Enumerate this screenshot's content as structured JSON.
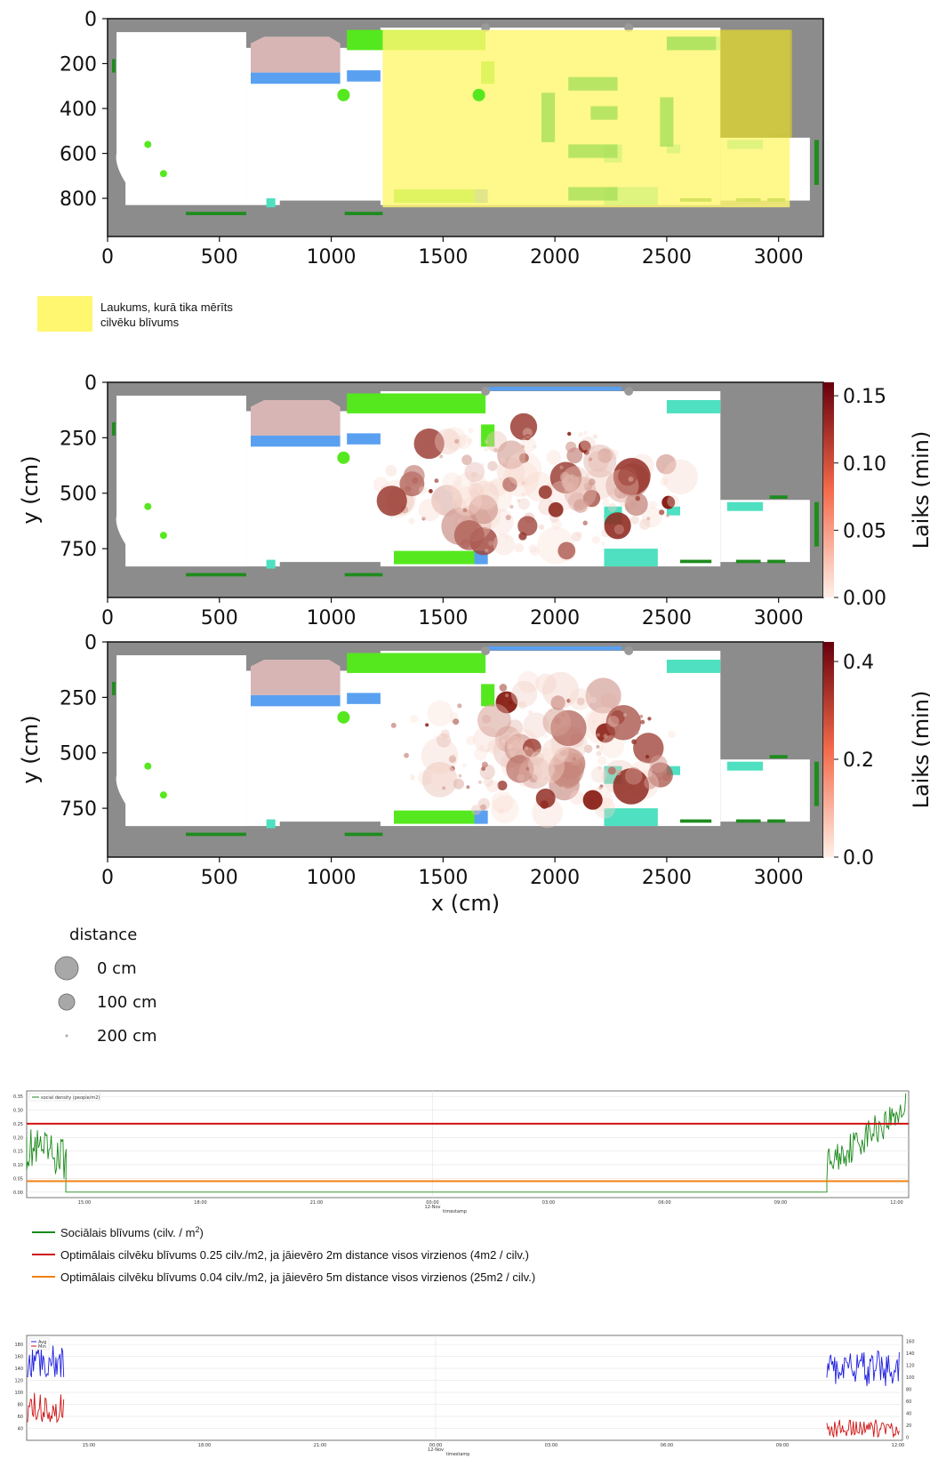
{
  "colors": {
    "wall": "#8c8c8c",
    "floor": "#ffffff",
    "pink": "#d8b5b5",
    "blue": "#5aa0f0",
    "green_light": "#56e81e",
    "dark_green": "#1e8c1e",
    "teal": "#4ee0c0",
    "yellow": "#fff770",
    "olive": "#c8bf3c",
    "green_line": "#1a8a1a",
    "red_line": "#d01010",
    "orange_line": "#f08010",
    "blue_line": "#2020e0"
  },
  "map1": {
    "x_ticks": [
      "0",
      "500",
      "1000",
      "1500",
      "2000",
      "2500",
      "3000"
    ],
    "y_ticks": [
      "0",
      "200",
      "400",
      "600",
      "800"
    ],
    "legend_label_line1": "Laukums, kurā tika mērīts",
    "legend_label_line2": "cilvēku blīvums"
  },
  "map2": {
    "x_ticks": [
      "0",
      "500",
      "1000",
      "1500",
      "2000",
      "2500",
      "3000"
    ],
    "y_ticks": [
      "0",
      "250",
      "500",
      "750"
    ],
    "ylabel": "y (cm)",
    "cbar_label": "Laiks (min)",
    "cbar_ticks": [
      "0.00",
      "0.05",
      "0.10",
      "0.15"
    ]
  },
  "map3": {
    "x_ticks": [
      "0",
      "500",
      "1000",
      "1500",
      "2000",
      "2500",
      "3000"
    ],
    "y_ticks": [
      "0",
      "250",
      "500",
      "750"
    ],
    "ylabel": "y (cm)",
    "xlabel": "x (cm)",
    "cbar_label": "Laiks (min)",
    "cbar_ticks": [
      "0.0",
      "0.2",
      "0.4"
    ]
  },
  "size_legend": {
    "title": "distance",
    "items": [
      "0 cm",
      "100 cm",
      "200 cm"
    ]
  },
  "chart_data": [
    {
      "type": "scatter",
      "x_range": [
        0,
        3200
      ],
      "y_range": [
        0,
        950
      ],
      "ylabel": "y (cm)",
      "xlabel": "x (cm)",
      "colorbar_label": "Laiks (min)",
      "colorbar_range": [
        0,
        0.16
      ],
      "size_legend": {
        "0 cm": "large",
        "100 cm": "medium",
        "200 cm": "small"
      }
    },
    {
      "type": "scatter",
      "x_range": [
        0,
        3200
      ],
      "y_range": [
        0,
        950
      ],
      "ylabel": "y (cm)",
      "xlabel": "x (cm)",
      "colorbar_label": "Laiks (min)",
      "colorbar_range": [
        0,
        0.48
      ]
    },
    {
      "type": "line",
      "x_ticks": [
        "15:00",
        "18:00",
        "21:00",
        "00:00\n12-Nov",
        "03:00",
        "06:00",
        "09:00",
        "12:00"
      ],
      "y_ticks": [
        "0.00",
        "0.05",
        "0.10",
        "0.15",
        "0.20",
        "0.25",
        "0.30",
        "0.35"
      ],
      "xlabel": "timestamp",
      "ylim": [
        -0.02,
        0.37
      ],
      "series": [
        {
          "name": "social density (people/m2)",
          "values_start": [
            0.2,
            0.22,
            0.18,
            0.15,
            0.12,
            0.1,
            0.0
          ],
          "values_end": [
            0.0,
            0.1,
            0.15,
            0.22,
            0.28,
            0.31,
            0.35
          ]
        },
        {
          "name": "Optimālais cilvēku blīvums 0.25 cilv./m2",
          "value": 0.25
        },
        {
          "name": "Optimālais cilvēku blīvums 0.04 cilv./m2",
          "value": 0.04
        }
      ]
    },
    {
      "type": "line",
      "x_ticks": [
        "15:00",
        "18:00",
        "21:00",
        "00:00\n12-Nov",
        "03:00",
        "06:00",
        "09:00",
        "12:00"
      ],
      "y_ticks_left": [
        "40",
        "60",
        "80",
        "100",
        "120",
        "140",
        "160",
        "180"
      ],
      "y_ticks_right": [
        "0",
        "20",
        "40",
        "60",
        "80",
        "100",
        "120",
        "140",
        "160"
      ],
      "xlabel": "timestamp",
      "series": [
        {
          "name": "Avg",
          "values_start": [
            150,
            140,
            160,
            130,
            145
          ],
          "values_end": [
            100,
            120,
            110,
            130,
            120
          ]
        },
        {
          "name": "Min",
          "values_start": [
            80,
            60,
            90,
            55,
            70
          ],
          "values_end": [
            10,
            15,
            20,
            12,
            18
          ]
        }
      ]
    }
  ],
  "ts_legend": {
    "green": "Sociālais blīvums (cilv. / m",
    "green_sup": "2",
    "green_tail": ")",
    "red": "Optimālais cilvēku blīvums 0.25 cilv./m2, ja jāievēro 2m distance visos virzienos (4m2 / cilv.)",
    "orange": "Optimālais cilvēku blīvums 0.04 cilv./m2, ja jāievēro 5m distance visos virzienos (25m2 / cilv.)"
  },
  "ts1": {
    "inner_legend": "social density (people/m2)",
    "xlabel": "timestamp",
    "date_label": "12-Nov",
    "x_ticks": [
      "15:00",
      "18:00",
      "21:00",
      "00:00",
      "03:00",
      "06:00",
      "09:00",
      "12:00"
    ],
    "y_ticks": [
      "0.35",
      "0.30",
      "0.25",
      "0.20",
      "0.15",
      "0.10",
      "0.05",
      "0.00"
    ]
  },
  "ts2": {
    "legend_avg": "Avg",
    "legend_min": "Min",
    "xlabel": "timestamp",
    "date_label": "12-Nov",
    "x_ticks": [
      "15:00",
      "18:00",
      "21:00",
      "00:00",
      "03:00",
      "06:00",
      "09:00",
      "12:00"
    ],
    "y_ticks_left": [
      "180",
      "160",
      "140",
      "120",
      "100",
      "80",
      "60",
      "40"
    ],
    "y_ticks_right": [
      "160",
      "140",
      "120",
      "100",
      "80",
      "60",
      "40",
      "20",
      "0"
    ]
  }
}
